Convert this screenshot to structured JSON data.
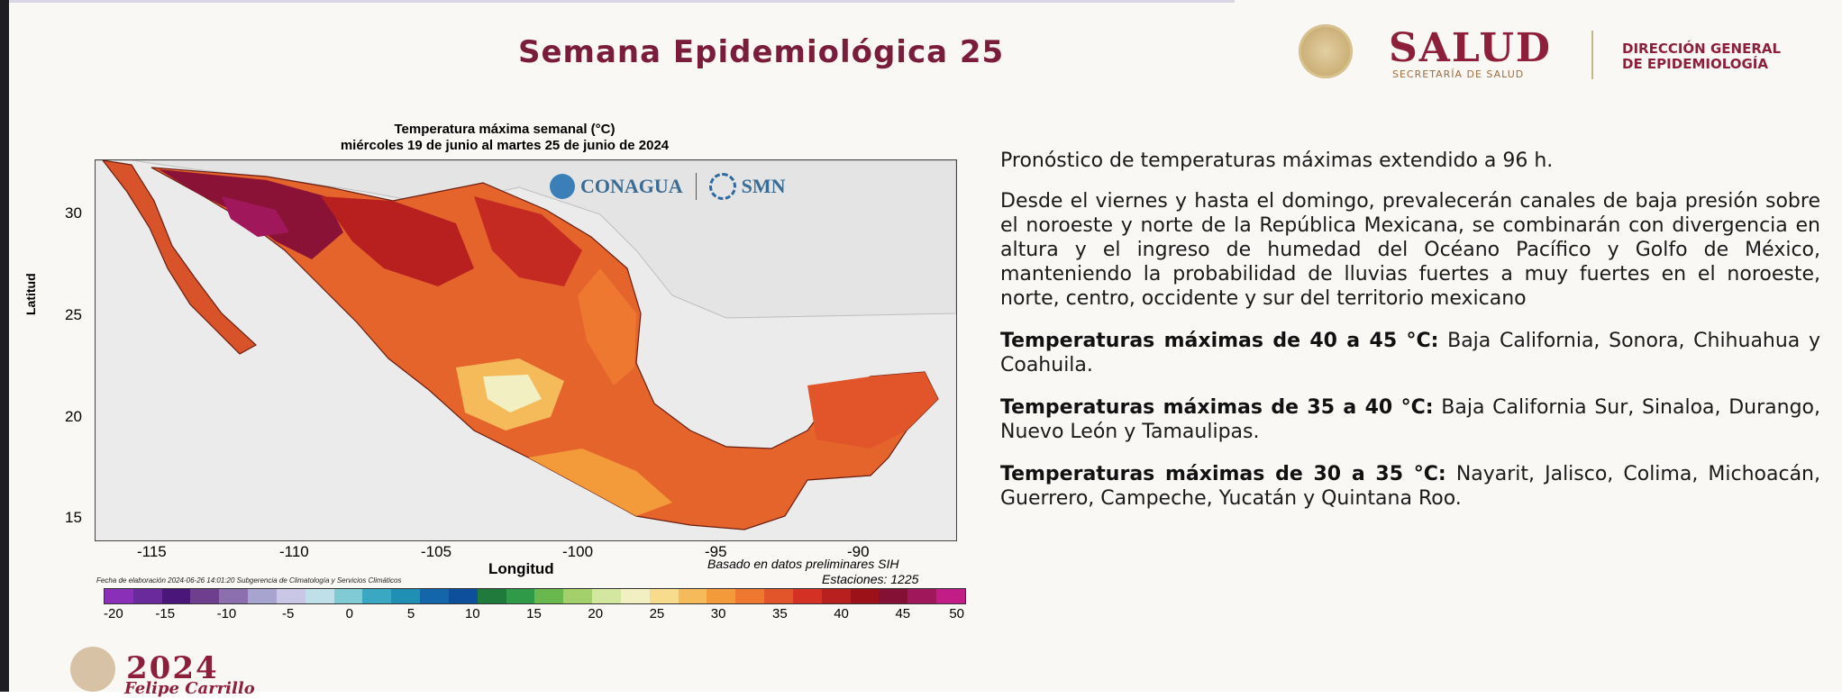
{
  "slide": {
    "title": "Semana Epidemiológica 25"
  },
  "header_logos": {
    "salud": "SALUD",
    "salud_sub": "SECRETARÍA DE SALUD",
    "dge_line1": "DIRECCIÓN GENERAL",
    "dge_line2": "DE EPIDEMIOLOGÍA"
  },
  "map": {
    "title_line1": "Temperatura máxima semanal (°C)",
    "title_line2": "miércoles 19 de junio al martes 25 de junio de 2024",
    "conagua": "CONAGUA",
    "smn": "SMN",
    "ylabel": "Latitud",
    "xlabel": "Longitud",
    "yticks": [
      "30",
      "25",
      "20",
      "15"
    ],
    "xticks": [
      "-115",
      "-110",
      "-105",
      "-100",
      "-95",
      "-90"
    ],
    "note_line1": "Basado en datos preliminares SIH",
    "note_line2": "Estaciones:  1225",
    "credit": "Fecha de elaboración 2024-06-26 14:01:20 Subgerencia de Climatología y Servicios Climáticos",
    "colorbar": {
      "labels": [
        "-20",
        "-15",
        "-10",
        "-5",
        "0",
        "5",
        "10",
        "15",
        "20",
        "25",
        "30",
        "35",
        "40",
        "45",
        "50"
      ],
      "colors": [
        "#8a2fb7",
        "#6b2a9c",
        "#4a167a",
        "#6f3f8f",
        "#8c6fae",
        "#a8a4d0",
        "#c9c6e6",
        "#bfe0e8",
        "#7fcad3",
        "#3aa8c2",
        "#1f8fb3",
        "#1366a9",
        "#0d4f9a",
        "#1f7a3b",
        "#2f9a48",
        "#68b84e",
        "#a3d06a",
        "#d3e7a0",
        "#f2f0c3",
        "#f8dc8e",
        "#f5bb5a",
        "#f39a3b",
        "#ef7830",
        "#e2542a",
        "#d43024",
        "#b8201f",
        "#9c1118",
        "#851036",
        "#a0185b",
        "#c21d86"
      ]
    }
  },
  "forecast": {
    "heading": "Pronóstico de temperaturas máximas extendido a 96  h.",
    "description": "Desde el viernes y hasta el domingo, prevalecerán canales de baja presión sobre el noroeste y norte de la República Mexicana, se combinarán con divergencia en altura y el ingreso de humedad del Océano Pacífico y Golfo de México, manteniendo la probabilidad de lluvias fuertes a muy fuertes en el noroeste, norte, centro, occidente y sur del territorio mexicano",
    "ranges": [
      {
        "label": "Temperaturas máximas de 40 a 45 °C:",
        "states": "Baja California, Sonora, Chihuahua y Coahuila."
      },
      {
        "label": "Temperaturas máximas de 35 a 40 °C:",
        "states": "Baja California Sur, Sinaloa, Durango, Nuevo León y Tamaulipas."
      },
      {
        "label": "Temperaturas máximas de 30 a 35 °C:",
        "states": "Nayarit, Jalisco, Colima, Michoacán, Guerrero, Campeche, Yucatán y Quintana Roo."
      }
    ]
  },
  "footer_logo": {
    "year": "2024",
    "name": "Felipe Carrillo"
  }
}
